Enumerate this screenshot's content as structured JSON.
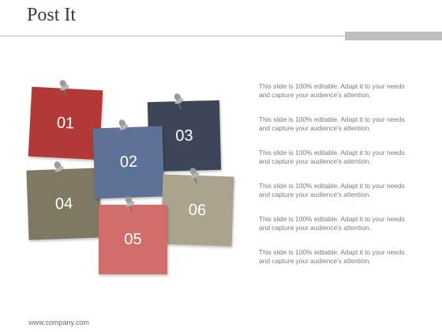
{
  "title": "Post It",
  "notes": [
    {
      "label": "01",
      "color": "#b13a38"
    },
    {
      "label": "02",
      "color": "#5e7196"
    },
    {
      "label": "03",
      "color": "#3d4658"
    },
    {
      "label": "04",
      "color": "#7f7862"
    },
    {
      "label": "05",
      "color": "#d16e6b"
    },
    {
      "label": "06",
      "color": "#aaa38e"
    }
  ],
  "descriptions": [
    "This slide is 100% editable. Adapt it to your needs and capture your audience's attention.",
    "This slide is 100% editable. Adapt it to your needs and capture your audience's attention.",
    "This slide is 100% editable. Adapt it to your needs and capture your audience's attention.",
    "This slide is 100% editable. Adapt it to your needs and capture your audience's attention.",
    "This slide is 100% editable. Adapt it to your needs and capture your audience's attention.",
    "This slide is 100% editable. Adapt it to your needs and capture your audience's attention."
  ],
  "footer": "www.company.com",
  "icons": [
    "pushpin-icon"
  ]
}
